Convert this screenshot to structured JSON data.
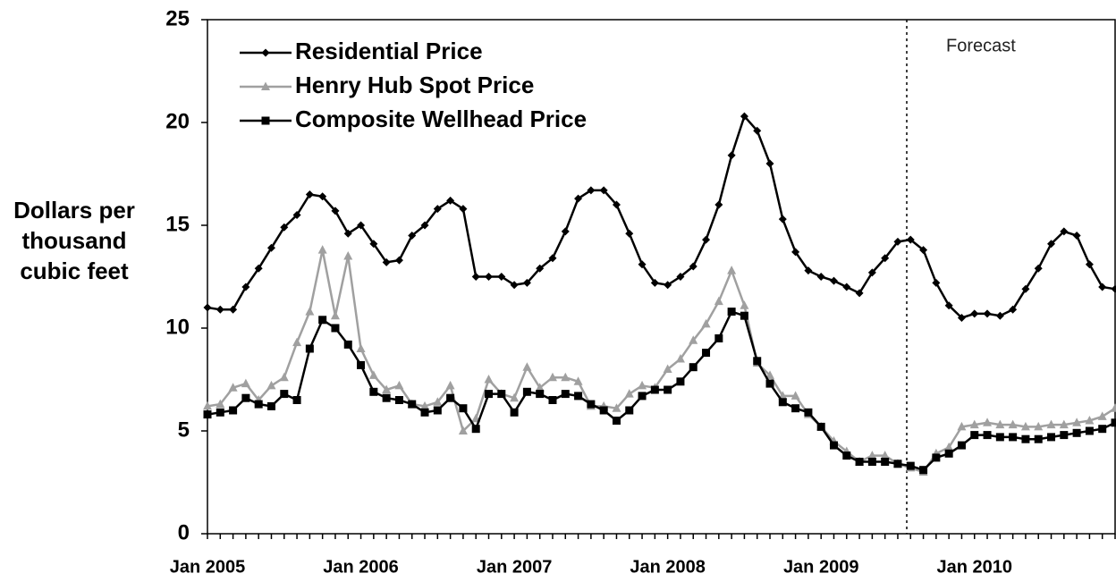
{
  "chart_data": {
    "type": "line",
    "ylabel": "Dollars per thousand cubic feet",
    "annotation": "Forecast",
    "categories": [
      "Jan 2005",
      null,
      null,
      null,
      null,
      null,
      null,
      null,
      null,
      null,
      null,
      null,
      "Jan 2006",
      null,
      null,
      null,
      null,
      null,
      null,
      null,
      null,
      null,
      null,
      null,
      "Jan 2007",
      null,
      null,
      null,
      null,
      null,
      null,
      null,
      null,
      null,
      null,
      null,
      "Jan 2008",
      null,
      null,
      null,
      null,
      null,
      null,
      null,
      null,
      null,
      null,
      null,
      "Jan 2009",
      null,
      null,
      null,
      null,
      null,
      null,
      null,
      null,
      null,
      null,
      null,
      "Jan 2010",
      null,
      null,
      null,
      null,
      null,
      null,
      null,
      null,
      null,
      null,
      null
    ],
    "series": [
      {
        "name": "Residential Price",
        "color": "#000000",
        "marker": "diamond",
        "values": [
          11.0,
          10.9,
          10.9,
          12.0,
          12.9,
          13.9,
          14.9,
          15.5,
          16.5,
          16.4,
          15.7,
          14.6,
          15.0,
          14.1,
          13.2,
          13.3,
          14.5,
          15.0,
          15.8,
          16.2,
          15.8,
          12.5,
          12.5,
          12.5,
          12.1,
          12.2,
          12.9,
          13.4,
          14.7,
          16.3,
          16.7,
          16.7,
          16.0,
          14.6,
          13.1,
          12.2,
          12.1,
          12.5,
          13.0,
          14.3,
          16.0,
          18.4,
          20.3,
          19.6,
          18.0,
          15.3,
          13.7,
          12.8,
          12.5,
          12.3,
          12.0,
          11.7,
          12.7,
          13.4,
          14.2,
          14.3,
          13.8,
          12.2,
          11.1,
          10.5,
          10.7,
          10.7,
          10.6,
          10.9,
          11.9,
          12.9,
          14.1,
          14.7,
          14.5,
          13.1,
          12.0,
          11.9
        ]
      },
      {
        "name": "Henry Hub Spot Price",
        "color": "#a0a0a0",
        "marker": "triangle",
        "values": [
          6.2,
          6.3,
          7.1,
          7.3,
          6.5,
          7.2,
          7.6,
          9.3,
          10.8,
          13.8,
          10.6,
          13.5,
          9.0,
          7.7,
          7.0,
          7.2,
          6.3,
          6.2,
          6.4,
          7.2,
          5.0,
          5.6,
          7.5,
          6.8,
          6.6,
          8.1,
          7.1,
          7.6,
          7.6,
          7.4,
          6.2,
          6.2,
          6.1,
          6.8,
          7.2,
          7.1,
          8.0,
          8.5,
          9.4,
          10.2,
          11.3,
          12.8,
          11.1,
          8.3,
          7.7,
          6.7,
          6.7,
          5.8,
          5.2,
          4.5,
          4.0,
          3.5,
          3.8,
          3.8,
          3.4,
          3.2,
          3.0,
          3.9,
          4.2,
          5.2,
          5.3,
          5.4,
          5.3,
          5.3,
          5.2,
          5.2,
          5.3,
          5.3,
          5.4,
          5.5,
          5.7,
          6.1
        ]
      },
      {
        "name": "Composite Wellhead Price",
        "color": "#000000",
        "marker": "square",
        "values": [
          5.8,
          5.9,
          6.0,
          6.6,
          6.3,
          6.2,
          6.8,
          6.5,
          9.0,
          10.4,
          10.0,
          9.2,
          8.2,
          6.9,
          6.6,
          6.5,
          6.3,
          5.9,
          6.0,
          6.6,
          6.1,
          5.1,
          6.8,
          6.8,
          5.9,
          6.9,
          6.8,
          6.5,
          6.8,
          6.7,
          6.3,
          6.0,
          5.5,
          6.0,
          6.7,
          7.0,
          7.0,
          7.4,
          8.1,
          8.8,
          9.5,
          10.8,
          10.6,
          8.4,
          7.3,
          6.4,
          6.1,
          5.9,
          5.2,
          4.3,
          3.8,
          3.5,
          3.5,
          3.5,
          3.4,
          3.3,
          3.1,
          3.7,
          3.9,
          4.3,
          4.8,
          4.8,
          4.7,
          4.7,
          4.6,
          4.6,
          4.7,
          4.8,
          4.9,
          5.0,
          5.1,
          5.4
        ]
      }
    ],
    "ylim": [
      0,
      25
    ],
    "yticks": [
      0,
      5,
      10,
      15,
      20,
      25
    ],
    "grid": false,
    "legend": "top-left"
  }
}
